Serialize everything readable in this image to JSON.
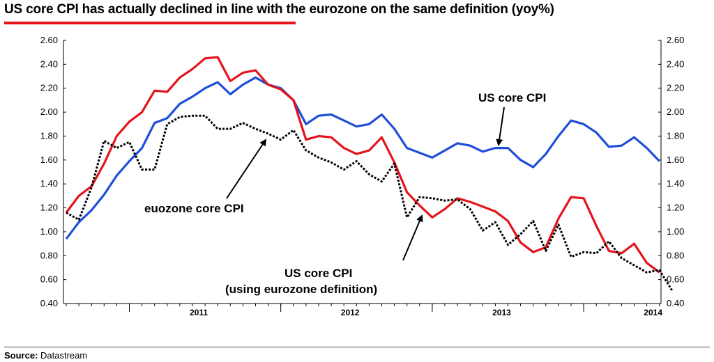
{
  "title": "US core CPI has actually declined in line with the eurozone on the same definition (yoy%)",
  "footer": {
    "source_label": "Source:",
    "source_value": "Datastream"
  },
  "colors": {
    "us_core": "#1f4fd8",
    "us_euro_def": "#e3141b",
    "eurozone": "#000000",
    "title_rule": "#e3141b"
  },
  "chart_data": {
    "type": "line",
    "title": "US core CPI has actually declined in line with the eurozone on the same definition (yoy%)",
    "xlabel": "",
    "ylabel": "",
    "ylim": [
      0.4,
      2.6
    ],
    "yticks": [
      "0.40",
      "0.60",
      "0.80",
      "1.00",
      "1.20",
      "1.40",
      "1.60",
      "1.80",
      "2.00",
      "2.20",
      "2.40",
      "2.60"
    ],
    "year_labels": [
      "2011",
      "2012",
      "2013",
      "2014"
    ],
    "x_start": "2010-08",
    "grid": false,
    "series": [
      {
        "name": "US core CPI",
        "color": "#1f4fd8",
        "style": "solid",
        "values": [
          0.94,
          1.08,
          1.18,
          1.31,
          1.47,
          1.59,
          1.7,
          1.91,
          1.95,
          2.07,
          2.13,
          2.2,
          2.25,
          2.15,
          2.23,
          2.29,
          2.23,
          2.2,
          2.1,
          1.9,
          1.97,
          1.98,
          1.93,
          1.88,
          1.9,
          1.98,
          1.86,
          1.7,
          1.66,
          1.62,
          1.68,
          1.74,
          1.72,
          1.67,
          1.7,
          1.7,
          1.6,
          1.54,
          1.65,
          1.8,
          1.93,
          1.9,
          1.83,
          1.71,
          1.72,
          1.79,
          1.7,
          1.59
        ]
      },
      {
        "name": "US core CPI (using eurozone definition)",
        "color": "#e3141b",
        "style": "solid",
        "values": [
          1.16,
          1.3,
          1.38,
          1.57,
          1.8,
          1.92,
          2.0,
          2.18,
          2.17,
          2.29,
          2.36,
          2.45,
          2.46,
          2.26,
          2.33,
          2.35,
          2.23,
          2.19,
          2.1,
          1.77,
          1.8,
          1.79,
          1.7,
          1.65,
          1.68,
          1.79,
          1.58,
          1.33,
          1.22,
          1.12,
          1.19,
          1.28,
          1.25,
          1.21,
          1.17,
          1.09,
          0.91,
          0.83,
          0.87,
          1.11,
          1.29,
          1.28,
          1.05,
          0.84,
          0.82,
          0.9,
          0.74,
          0.66
        ]
      },
      {
        "name": "euozone core CPI",
        "color": "#000000",
        "style": "dotted",
        "values": [
          1.16,
          1.1,
          1.37,
          1.76,
          1.7,
          1.75,
          1.52,
          1.52,
          1.9,
          1.96,
          1.97,
          1.97,
          1.86,
          1.86,
          1.91,
          1.86,
          1.82,
          1.77,
          1.85,
          1.68,
          1.62,
          1.58,
          1.52,
          1.59,
          1.48,
          1.42,
          1.57,
          1.12,
          1.29,
          1.28,
          1.26,
          1.27,
          1.19,
          1.01,
          1.08,
          0.89,
          0.98,
          1.09,
          0.84,
          1.06,
          0.79,
          0.83,
          0.82,
          0.92,
          0.78,
          0.72,
          0.66,
          0.68,
          0.51
        ]
      }
    ],
    "annotations": [
      {
        "text": "US core CPI"
      },
      {
        "text": "euozone core CPI"
      },
      {
        "text": "US core CPI"
      },
      {
        "text": "(using eurozone definition)"
      }
    ]
  }
}
